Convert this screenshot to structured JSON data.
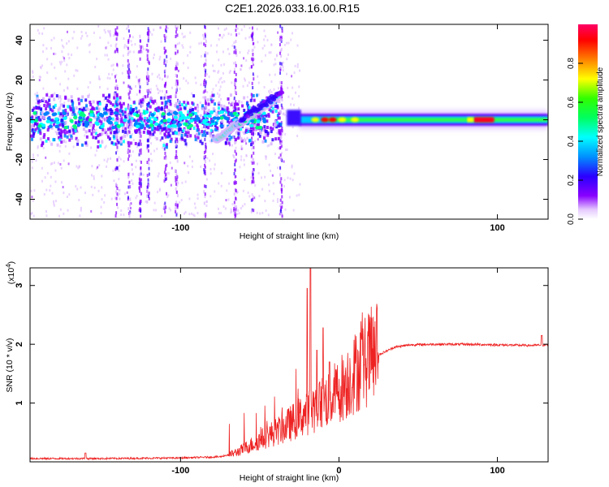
{
  "figure_title": "C2E1.2026.033.16.00.R15",
  "chart_data": [
    {
      "type": "heatmap",
      "name": "spectrogram",
      "xlabel": "Height of straight line (km)",
      "ylabel": "Frequency (Hz)",
      "xlim": [
        -195,
        132
      ],
      "ylim": [
        -50,
        48
      ],
      "xticks": [
        -100,
        0,
        100
      ],
      "xtick_labels": [
        "-100",
        "",
        "100"
      ],
      "yticks": [
        -40,
        -20,
        0,
        20,
        40
      ],
      "ytick_labels": [
        "-40",
        "-20",
        "0",
        "20",
        "40"
      ],
      "colorbar": {
        "label": "Normalized spectral amplitude",
        "range": [
          0,
          1
        ],
        "ticks": [
          0.0,
          0.2,
          0.4,
          0.6,
          0.8
        ],
        "tick_labels": [
          "0.0",
          "0.2",
          "0.4",
          "0.6",
          "0.8"
        ],
        "colormap": [
          "#ffffff",
          "#d8b0ff",
          "#8800ff",
          "#3000ff",
          "#0080ff",
          "#00ffff",
          "#00ff80",
          "#00ff00",
          "#ffff00",
          "#ff8000",
          "#ff0000",
          "#ff0080"
        ]
      },
      "ridges": [
        {
          "label": "noisy band",
          "x": [
            -195,
            -40
          ],
          "freq": [
            0,
            0
          ],
          "amplitude": 0.3
        },
        {
          "label": "rising trace",
          "x": [
            -78,
            -38
          ],
          "freq": [
            -10,
            12
          ],
          "amplitude": 0.5
        },
        {
          "label": "steady tone",
          "x": [
            -25,
            132
          ],
          "freq": [
            0,
            0
          ],
          "amplitude": 0.6
        },
        {
          "label": "peak",
          "x": [
            85,
            98
          ],
          "freq": [
            0,
            0
          ],
          "amplitude": 0.98
        }
      ]
    },
    {
      "type": "line",
      "name": "snr",
      "xlabel": "Height of straight line (km)",
      "ylabel": "SNR (10 * v/v)",
      "multiplier": "(x10",
      "multiplier_exp": "4",
      "multiplier_close": ")",
      "xlim": [
        -195,
        132
      ],
      "ylim": [
        0,
        3.3
      ],
      "xticks": [
        -100,
        0,
        100
      ],
      "xtick_labels": [
        "-100",
        "0",
        "100"
      ],
      "yticks": [
        1,
        2,
        3
      ],
      "ytick_labels": [
        "1",
        "2",
        "3"
      ],
      "line_color": "#ee2222",
      "series": [
        {
          "name": "SNR envelope",
          "x": [
            -195,
            -150,
            -100,
            -75,
            -65,
            -55,
            -45,
            -35,
            -25,
            -15,
            -5,
            5,
            15,
            25,
            35,
            45,
            60,
            80,
            100,
            120,
            132
          ],
          "y": [
            0.05,
            0.05,
            0.06,
            0.08,
            0.15,
            0.28,
            0.42,
            0.55,
            0.72,
            0.9,
            1.05,
            1.3,
            1.6,
            1.82,
            1.95,
            1.99,
            2.0,
            2.0,
            1.99,
            1.98,
            1.99
          ]
        },
        {
          "name": "SNR spikes",
          "x": [
            -20,
            -18,
            -14,
            -10,
            -6
          ],
          "y": [
            2.95,
            3.3,
            1.9,
            2.28,
            1.7
          ]
        }
      ]
    }
  ]
}
